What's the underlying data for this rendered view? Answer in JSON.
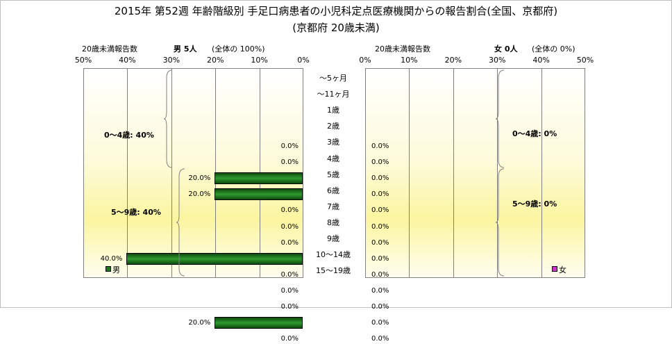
{
  "title_line1": "2015年 第52週 年齢階級別 手足口病患者の小児科定点医療機関からの報告割合(全国、京都府)",
  "title_line2": "(京都府 20歳未満)",
  "male_panel": {
    "header_label": "20歳未満報告数",
    "header_sex": "男 5人",
    "header_pct": "(全体の 100%)",
    "legend": "男",
    "color": "#1f7a1f"
  },
  "female_panel": {
    "header_label": "20歳未満報告数",
    "header_sex": "女 0人",
    "header_pct": "(全体の 0%)",
    "legend": "女",
    "color": "#cc33cc"
  },
  "chart_data": {
    "type": "bar",
    "orientation": "horizontal",
    "categories": [
      "～5ヶ月",
      "～11ヶ月",
      "1歳",
      "2歳",
      "3歳",
      "4歳",
      "5歳",
      "6歳",
      "7歳",
      "8歳",
      "9歳",
      "10～14歳",
      "15～19歳"
    ],
    "x_ticks_male": [
      "50%",
      "40%",
      "30%",
      "20%",
      "10%",
      "0%"
    ],
    "x_ticks_female": [
      "0%",
      "10%",
      "20%",
      "30%",
      "40%",
      "50%"
    ],
    "xlim": [
      0,
      50
    ],
    "series": [
      {
        "name": "男",
        "values": [
          0,
          0,
          20,
          20,
          0,
          0,
          0,
          40,
          0,
          0,
          0,
          20,
          0
        ],
        "labels": [
          "0.0%",
          "0.0%",
          "20.0%",
          "20.0%",
          "0.0%",
          "0.0%",
          "0.0%",
          "40.0%",
          "0.0%",
          "0.0%",
          "0.0%",
          "20.0%",
          "0.0%"
        ]
      },
      {
        "name": "女",
        "values": [
          0,
          0,
          0,
          0,
          0,
          0,
          0,
          0,
          0,
          0,
          0,
          0,
          0
        ],
        "labels": [
          "0.0%",
          "0.0%",
          "0.0%",
          "0.0%",
          "0.0%",
          "0.0%",
          "0.0%",
          "0.0%",
          "0.0%",
          "0.0%",
          "0.0%",
          "0.0%",
          "0.0%"
        ]
      }
    ],
    "group_labels_male": [
      "0～4歳: 40%",
      "5～9歳: 40%"
    ],
    "group_labels_female": [
      "0～4歳: 0%",
      "5～9歳: 0%"
    ],
    "grid": true
  }
}
